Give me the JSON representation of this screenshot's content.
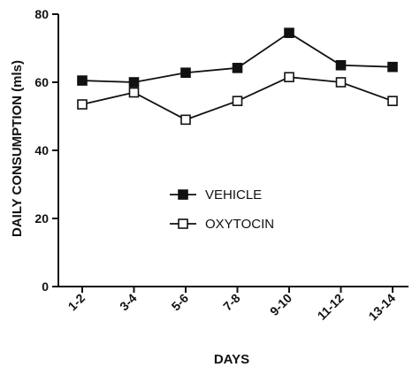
{
  "chart_data": {
    "type": "line",
    "categories": [
      "1-2",
      "3-4",
      "5-6",
      "7-8",
      "9-10",
      "11-12",
      "13-14"
    ],
    "series": [
      {
        "name": "VEHICLE",
        "marker": "filled-square",
        "color": "#111111",
        "values": [
          60.5,
          60,
          62.8,
          64.2,
          74.5,
          65,
          64.5
        ]
      },
      {
        "name": "OXYTOCIN",
        "marker": "open-square",
        "color": "#111111",
        "values": [
          53.5,
          57,
          49,
          54.5,
          61.5,
          60,
          54.5
        ]
      }
    ],
    "xlabel": "DAYS",
    "ylabel": "DAILY CONSUMPTION (mls)",
    "ylim": [
      0,
      80
    ],
    "yticks": [
      0,
      20,
      40,
      60,
      80
    ],
    "grid": false,
    "legend_position": "center-right"
  }
}
